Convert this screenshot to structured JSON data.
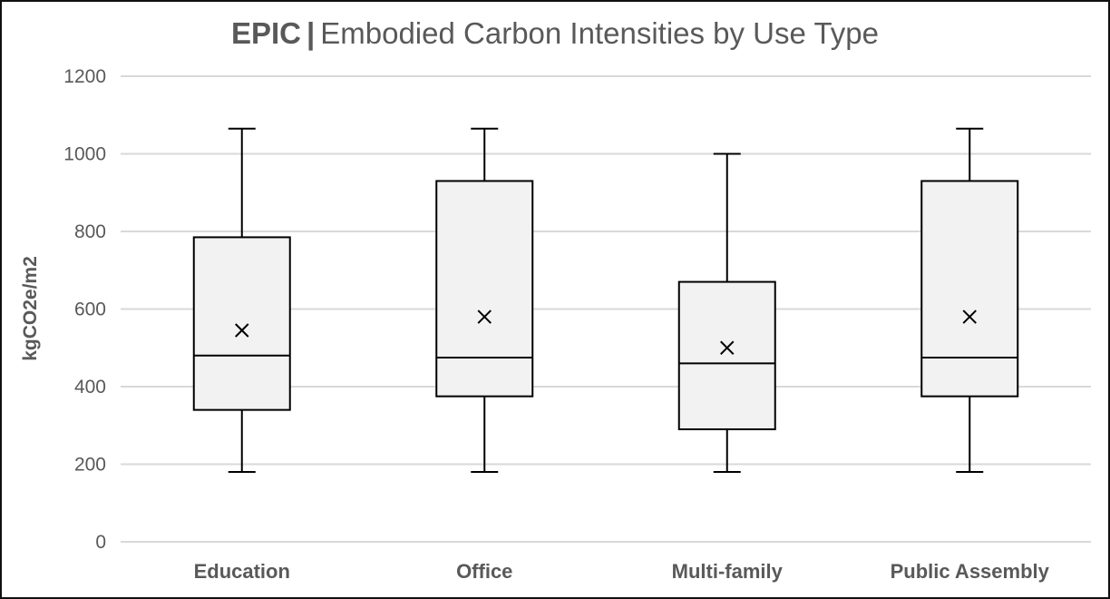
{
  "chart_data": {
    "type": "box",
    "title": {
      "brand": "EPIC",
      "separator": "|",
      "text": "Embodied Carbon Intensities by Use Type"
    },
    "xlabel": "",
    "ylabel": "kgCO2e/m2",
    "ylim": [
      0,
      1200
    ],
    "yticks": [
      0,
      200,
      400,
      600,
      800,
      1000,
      1200
    ],
    "grid": true,
    "categories": [
      "Education",
      "Office",
      "Multi-family",
      "Public Assembly"
    ],
    "boxes": [
      {
        "category": "Education",
        "min": 180,
        "q1": 340,
        "median": 480,
        "q3": 785,
        "max": 1065,
        "mean": 545
      },
      {
        "category": "Office",
        "min": 180,
        "q1": 375,
        "median": 475,
        "q3": 930,
        "max": 1065,
        "mean": 580
      },
      {
        "category": "Multi-family",
        "min": 180,
        "q1": 290,
        "median": 460,
        "q3": 670,
        "max": 1000,
        "mean": 500
      },
      {
        "category": "Public Assembly",
        "min": 180,
        "q1": 375,
        "median": 475,
        "q3": 930,
        "max": 1065,
        "mean": 580
      }
    ],
    "colors": {
      "box_fill": "#f2f2f2",
      "box_stroke": "#000000",
      "grid": "#d9d9d9",
      "text": "#595959"
    }
  }
}
